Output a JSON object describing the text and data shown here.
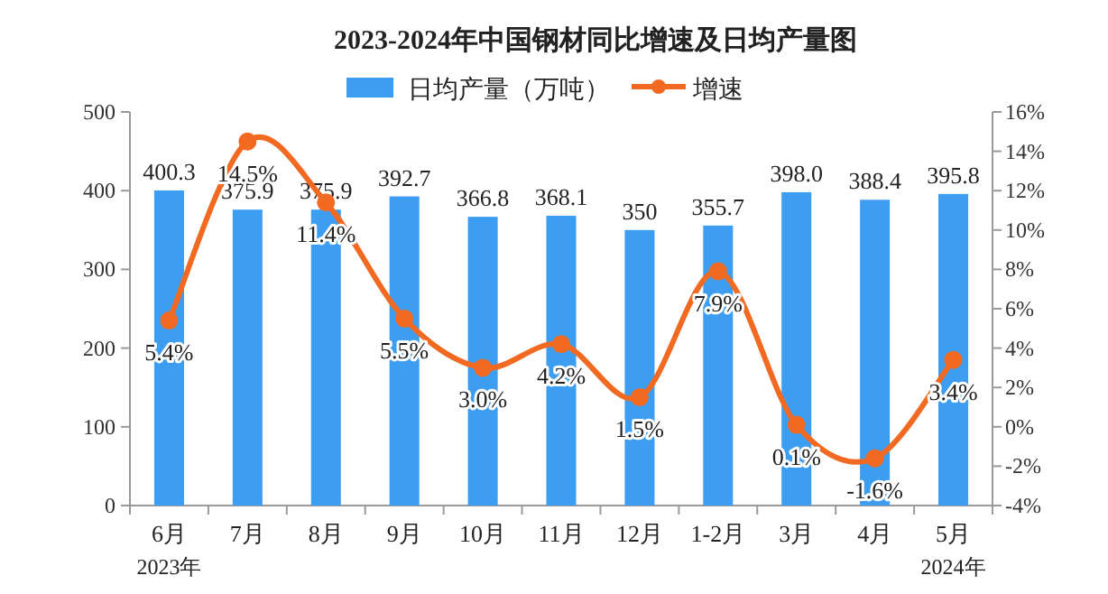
{
  "chart_data": {
    "type": "bar",
    "title": "2023-2024年中国钢材同比增速及日均产量图",
    "categories": [
      "6月",
      "7月",
      "8月",
      "9月",
      "10月",
      "11月",
      "12月",
      "1-2月",
      "3月",
      "4月",
      "5月"
    ],
    "series": [
      {
        "name": "日均产量（万吨）",
        "color": "#3d9df0",
        "values": [
          400.3,
          375.9,
          375.9,
          392.7,
          366.8,
          368.1,
          350,
          355.7,
          398.0,
          388.4,
          395.8
        ],
        "value_labels": [
          "400.3",
          "375.9",
          "375.9",
          "392.7",
          "366.8",
          "368.1",
          "350",
          "355.7",
          "398.0",
          "388.4",
          "395.8"
        ]
      },
      {
        "name": "增速",
        "type": "line",
        "axis": "y2",
        "color": "#f26a21",
        "marker": "circle",
        "values": [
          5.4,
          14.5,
          11.4,
          5.5,
          3.0,
          4.2,
          1.5,
          7.9,
          0.1,
          -1.6,
          3.4
        ],
        "value_labels": [
          "5.4%",
          "14.5%",
          "11.4%",
          "5.5%",
          "3.0%",
          "4.2%",
          "1.5%",
          "7.9%",
          "0.1%",
          "-1.6%",
          "3.4%"
        ]
      }
    ],
    "ylim": [
      0,
      500
    ],
    "yticks": [
      0,
      100,
      200,
      300,
      400,
      500
    ],
    "y2lim": [
      -4,
      16
    ],
    "y2ticks": [
      {
        "value": -4,
        "label": "-4%"
      },
      {
        "value": -2,
        "label": "-2%"
      },
      {
        "value": 0,
        "label": "0%"
      },
      {
        "value": 2,
        "label": "2%"
      },
      {
        "value": 4,
        "label": "4%"
      },
      {
        "value": 6,
        "label": "6%"
      },
      {
        "value": 8,
        "label": "8%"
      },
      {
        "value": 10,
        "label": "10%"
      },
      {
        "value": 12,
        "label": "12%"
      },
      {
        "value": 14,
        "label": "14%"
      },
      {
        "value": 16,
        "label": "16%"
      }
    ],
    "legend": "top",
    "grid": false,
    "annotations": [
      "2023年",
      "2024年"
    ]
  }
}
